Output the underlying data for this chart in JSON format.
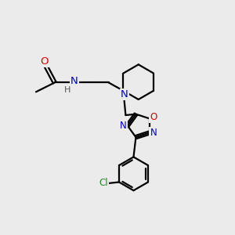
{
  "background_color": "#ebebeb",
  "bond_color": "#000000",
  "atom_colors": {
    "O": "#dd0000",
    "N": "#0000cc",
    "Cl": "#228822",
    "H": "#555555",
    "C": "#000000"
  },
  "figsize": [
    3.0,
    3.0
  ],
  "dpi": 100
}
